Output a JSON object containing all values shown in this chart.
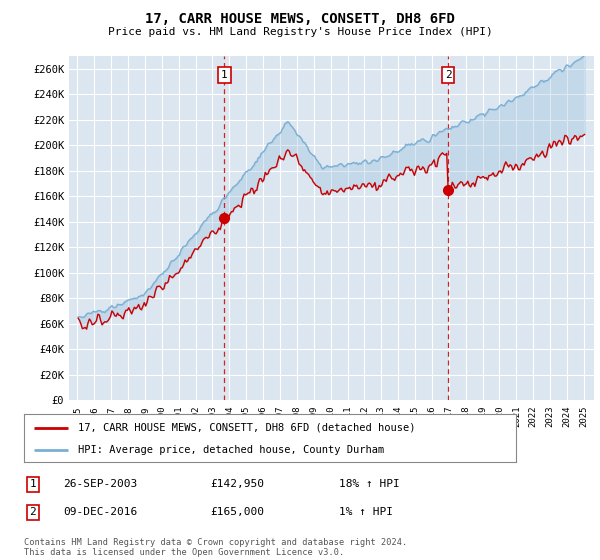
{
  "title": "17, CARR HOUSE MEWS, CONSETT, DH8 6FD",
  "subtitle": "Price paid vs. HM Land Registry's House Price Index (HPI)",
  "background_color": "#dce6f0",
  "grid_color": "#ffffff",
  "line1_color": "#cc0000",
  "line2_color": "#7bafd4",
  "transaction1_price": 142950,
  "transaction2_price": 165000,
  "transaction1_year": 2003.75,
  "transaction2_year": 2016.92,
  "legend1": "17, CARR HOUSE MEWS, CONSETT, DH8 6FD (detached house)",
  "legend2": "HPI: Average price, detached house, County Durham",
  "footer": "Contains HM Land Registry data © Crown copyright and database right 2024.\nThis data is licensed under the Open Government Licence v3.0.",
  "table": [
    {
      "num": "1",
      "date": "26-SEP-2003",
      "price": "£142,950",
      "pct": "18% ↑ HPI"
    },
    {
      "num": "2",
      "date": "09-DEC-2016",
      "price": "£165,000",
      "pct": "1% ↑ HPI"
    }
  ],
  "yticks": [
    0,
    20000,
    40000,
    60000,
    80000,
    100000,
    120000,
    140000,
    160000,
    180000,
    200000,
    220000,
    240000,
    260000
  ]
}
